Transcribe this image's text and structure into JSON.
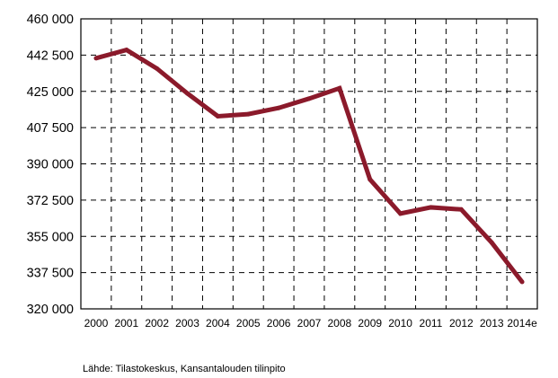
{
  "chart_data": {
    "type": "line",
    "title": "",
    "xlabel": "",
    "ylabel": "",
    "categories": [
      "2000",
      "2001",
      "2002",
      "2003",
      "2004",
      "2005",
      "2006",
      "2007",
      "2008",
      "2009",
      "2010",
      "2011",
      "2012",
      "2013",
      "2014e"
    ],
    "series": [
      {
        "values": [
          441000,
          445000,
          436000,
          424000,
          413000,
          414000,
          417000,
          421500,
          426500,
          382500,
          366000,
          369000,
          368000,
          352000,
          333000
        ],
        "color": "#8b1a2b"
      }
    ],
    "ylim": [
      320000,
      460000
    ],
    "yticks": [
      320000,
      337500,
      355000,
      372500,
      390000,
      407500,
      425000,
      442500,
      460000
    ],
    "ytick_labels": [
      "320 000",
      "337 500",
      "355 000",
      "372 500",
      "390 000",
      "407 500",
      "425 000",
      "442 500",
      "460 000"
    ],
    "grid": true,
    "grid_style": "dashed",
    "legend": "none"
  },
  "source_note": "Lähde: Tilastokeskus, Kansantalouden tilinpito"
}
